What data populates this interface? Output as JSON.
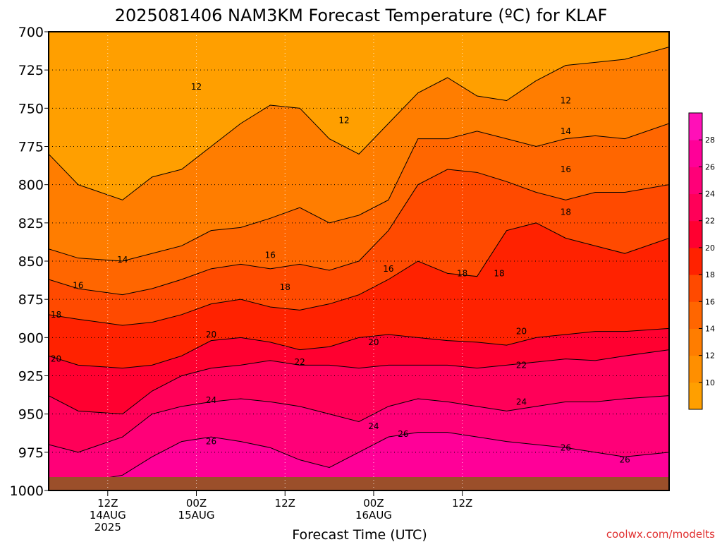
{
  "chart_data": {
    "type": "heatmap",
    "title": "2025081406 NAM3KM Forecast Temperature (ºC) for KLAF",
    "xlabel": "Forecast Time (UTC)",
    "ylabel": "",
    "y_axis": {
      "scale": "pressure",
      "inverted": true,
      "range": [
        1000,
        700
      ],
      "ticks": [
        700,
        725,
        750,
        775,
        800,
        825,
        850,
        875,
        900,
        925,
        950,
        975,
        1000
      ]
    },
    "x_axis": {
      "range_hours": [
        0,
        84
      ],
      "ticks": [
        {
          "hour": 8,
          "label": "12Z",
          "date": "14AUG",
          "year": "2025"
        },
        {
          "hour": 20,
          "label": "00Z",
          "date": "15AUG",
          "year": ""
        },
        {
          "hour": 32,
          "label": "12Z",
          "date": "",
          "year": ""
        },
        {
          "hour": 44,
          "label": "00Z",
          "date": "16AUG",
          "year": ""
        },
        {
          "hour": 56,
          "label": "12Z",
          "date": "",
          "year": ""
        }
      ]
    },
    "grid": true,
    "legend": "colorbar-right",
    "colorbar": {
      "ticks": [
        10,
        12,
        14,
        16,
        18,
        20,
        22,
        24,
        26,
        28
      ],
      "levels": [
        {
          "min": 8,
          "max": 10,
          "color": "#ff9f00"
        },
        {
          "min": 10,
          "max": 12,
          "color": "#ff8f00"
        },
        {
          "min": 12,
          "max": 14,
          "color": "#ff7d00"
        },
        {
          "min": 14,
          "max": 16,
          "color": "#ff6600"
        },
        {
          "min": 16,
          "max": 18,
          "color": "#ff4a00"
        },
        {
          "min": 18,
          "max": 20,
          "color": "#ff2200"
        },
        {
          "min": 20,
          "max": 22,
          "color": "#ff0030"
        },
        {
          "min": 22,
          "max": 24,
          "color": "#ff0058"
        },
        {
          "min": 24,
          "max": 26,
          "color": "#ff0078"
        },
        {
          "min": 26,
          "max": 28,
          "color": "#ff0098"
        },
        {
          "min": 28,
          "max": 30,
          "color": "#ff10b8"
        }
      ]
    },
    "series": [
      {
        "level": 12,
        "x": [
          0,
          4,
          10,
          14,
          18,
          22,
          26,
          30,
          34,
          38,
          42,
          46,
          50,
          54,
          58,
          62,
          66,
          70,
          74,
          78,
          84
        ],
        "y": [
          780,
          800,
          810,
          795,
          790,
          775,
          760,
          748,
          750,
          770,
          780,
          760,
          740,
          730,
          742,
          745,
          732,
          722,
          720,
          718,
          710
        ]
      },
      {
        "level": 14,
        "x": [
          0,
          4,
          10,
          14,
          18,
          22,
          26,
          30,
          34,
          38,
          42,
          46,
          50,
          54,
          58,
          62,
          66,
          70,
          74,
          78,
          84
        ],
        "y": [
          842,
          848,
          850,
          845,
          840,
          830,
          828,
          822,
          815,
          825,
          820,
          810,
          770,
          770,
          765,
          770,
          775,
          770,
          768,
          770,
          760
        ]
      },
      {
        "level": 16,
        "x": [
          0,
          4,
          10,
          14,
          18,
          22,
          26,
          30,
          34,
          38,
          42,
          46,
          50,
          54,
          58,
          62,
          66,
          70,
          74,
          78,
          84
        ],
        "y": [
          862,
          868,
          872,
          868,
          862,
          855,
          852,
          855,
          852,
          856,
          850,
          830,
          800,
          790,
          792,
          798,
          805,
          810,
          805,
          805,
          800
        ]
      },
      {
        "level": 18,
        "x": [
          0,
          4,
          10,
          14,
          18,
          22,
          26,
          30,
          34,
          38,
          42,
          46,
          50,
          54,
          58,
          62,
          66,
          70,
          74,
          78,
          84
        ],
        "y": [
          885,
          888,
          892,
          890,
          885,
          878,
          875,
          880,
          882,
          878,
          872,
          862,
          850,
          858,
          860,
          830,
          825,
          835,
          840,
          845,
          835
        ]
      },
      {
        "level": 20,
        "x": [
          0,
          4,
          10,
          14,
          18,
          22,
          26,
          30,
          34,
          38,
          42,
          46,
          50,
          54,
          58,
          62,
          66,
          70,
          74,
          78,
          84
        ],
        "y": [
          912,
          918,
          920,
          918,
          912,
          902,
          900,
          903,
          908,
          906,
          900,
          898,
          900,
          902,
          903,
          905,
          900,
          898,
          896,
          896,
          894
        ]
      },
      {
        "level": 22,
        "x": [
          0,
          4,
          10,
          14,
          18,
          22,
          26,
          30,
          34,
          38,
          42,
          46,
          50,
          54,
          58,
          62,
          66,
          70,
          74,
          78,
          84
        ],
        "y": [
          938,
          948,
          950,
          935,
          925,
          920,
          918,
          915,
          918,
          918,
          920,
          918,
          918,
          918,
          920,
          918,
          916,
          914,
          915,
          912,
          908
        ]
      },
      {
        "level": 24,
        "x": [
          0,
          4,
          10,
          14,
          18,
          22,
          26,
          30,
          34,
          38,
          42,
          46,
          50,
          54,
          58,
          62,
          66,
          70,
          74,
          78,
          84
        ],
        "y": [
          970,
          975,
          965,
          950,
          945,
          942,
          940,
          942,
          945,
          950,
          955,
          945,
          940,
          942,
          945,
          948,
          945,
          942,
          942,
          940,
          938
        ]
      },
      {
        "level": 26,
        "x": [
          0,
          4,
          10,
          14,
          18,
          22,
          26,
          30,
          34,
          38,
          42,
          46,
          50,
          54,
          58,
          62,
          66,
          70,
          74,
          78,
          84
        ],
        "y": [
          995,
          995,
          990,
          978,
          968,
          965,
          968,
          972,
          980,
          985,
          975,
          965,
          962,
          962,
          965,
          968,
          970,
          972,
          975,
          978,
          975
        ]
      }
    ],
    "contour_labels": [
      {
        "text": "12",
        "hour": 20,
        "p": 736
      },
      {
        "text": "12",
        "hour": 40,
        "p": 758
      },
      {
        "text": "12",
        "hour": 70,
        "p": 745
      },
      {
        "text": "14",
        "hour": 10,
        "p": 849
      },
      {
        "text": "14",
        "hour": 70,
        "p": 765
      },
      {
        "text": "16",
        "hour": 4,
        "p": 866
      },
      {
        "text": "16",
        "hour": 30,
        "p": 846
      },
      {
        "text": "16",
        "hour": 46,
        "p": 855
      },
      {
        "text": "16",
        "hour": 70,
        "p": 790
      },
      {
        "text": "18",
        "hour": 1,
        "p": 885
      },
      {
        "text": "18",
        "hour": 32,
        "p": 867
      },
      {
        "text": "18",
        "hour": 56,
        "p": 858
      },
      {
        "text": "18",
        "hour": 61,
        "p": 858
      },
      {
        "text": "18",
        "hour": 70,
        "p": 818
      },
      {
        "text": "20",
        "hour": 1,
        "p": 914
      },
      {
        "text": "20",
        "hour": 22,
        "p": 898
      },
      {
        "text": "20",
        "hour": 44,
        "p": 903
      },
      {
        "text": "20",
        "hour": 64,
        "p": 896
      },
      {
        "text": "22",
        "hour": 34,
        "p": 916
      },
      {
        "text": "22",
        "hour": 64,
        "p": 918
      },
      {
        "text": "24",
        "hour": 22,
        "p": 941
      },
      {
        "text": "24",
        "hour": 44,
        "p": 958
      },
      {
        "text": "24",
        "hour": 64,
        "p": 942
      },
      {
        "text": "26",
        "hour": 22,
        "p": 968
      },
      {
        "text": "26",
        "hour": 48,
        "p": 963
      },
      {
        "text": "26",
        "hour": 70,
        "p": 972
      },
      {
        "text": "26",
        "hour": 78,
        "p": 980
      }
    ]
  },
  "credit": "coolwx.com/modelts",
  "colors": {
    "ground": "#9b4f2a",
    "grid": "#000000",
    "frame": "#000000"
  }
}
